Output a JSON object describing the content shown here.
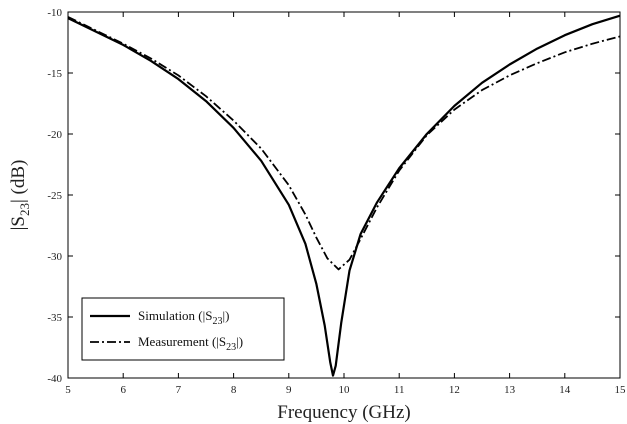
{
  "chart_data": {
    "type": "line",
    "title": "",
    "xlabel": "Frequency (GHz)",
    "ylabel_parts": {
      "pre": "|S",
      "sub": "23",
      "post": "| (dB)"
    },
    "xlim": [
      5,
      15
    ],
    "ylim": [
      -40,
      -10
    ],
    "xticks": [
      5,
      6,
      7,
      8,
      9,
      10,
      11,
      12,
      13,
      14,
      15
    ],
    "yticks": [
      -10,
      -15,
      -20,
      -25,
      -30,
      -35,
      -40
    ],
    "grid": false,
    "legend_position": "bottom-left",
    "series": [
      {
        "name_parts": {
          "pre": "Simulation (|S",
          "sub": "23",
          "post": "|)"
        },
        "style": "solid",
        "color": "#000000",
        "x": [
          5,
          5.5,
          6,
          6.5,
          7,
          7.5,
          8,
          8.5,
          9,
          9.3,
          9.5,
          9.65,
          9.75,
          9.8,
          9.85,
          9.95,
          10.1,
          10.3,
          10.6,
          11,
          11.5,
          12,
          12.5,
          13,
          13.5,
          14,
          14.5,
          15
        ],
        "y": [
          -10.5,
          -11.6,
          -12.7,
          -14.0,
          -15.5,
          -17.3,
          -19.5,
          -22.2,
          -25.8,
          -29.0,
          -32.3,
          -35.7,
          -38.7,
          -39.8,
          -39.0,
          -35.5,
          -31.2,
          -28.2,
          -25.6,
          -22.8,
          -20.0,
          -17.7,
          -15.8,
          -14.3,
          -13.0,
          -11.9,
          -11.0,
          -10.3
        ]
      },
      {
        "name_parts": {
          "pre": "Measurement (|S",
          "sub": "23",
          "post": "|)"
        },
        "style": "dashdot",
        "color": "#000000",
        "x": [
          5,
          5.5,
          6,
          6.5,
          7,
          7.5,
          8,
          8.5,
          9,
          9.3,
          9.5,
          9.7,
          9.9,
          10.1,
          10.3,
          10.6,
          11,
          11.5,
          12,
          12.5,
          13,
          13.5,
          14,
          14.5,
          15
        ],
        "y": [
          -10.4,
          -11.5,
          -12.6,
          -13.8,
          -15.2,
          -16.9,
          -18.9,
          -21.2,
          -24.2,
          -26.6,
          -28.5,
          -30.2,
          -31.1,
          -30.3,
          -28.6,
          -26.0,
          -23.0,
          -20.1,
          -18.0,
          -16.4,
          -15.2,
          -14.2,
          -13.3,
          -12.6,
          -12.0
        ]
      }
    ]
  }
}
